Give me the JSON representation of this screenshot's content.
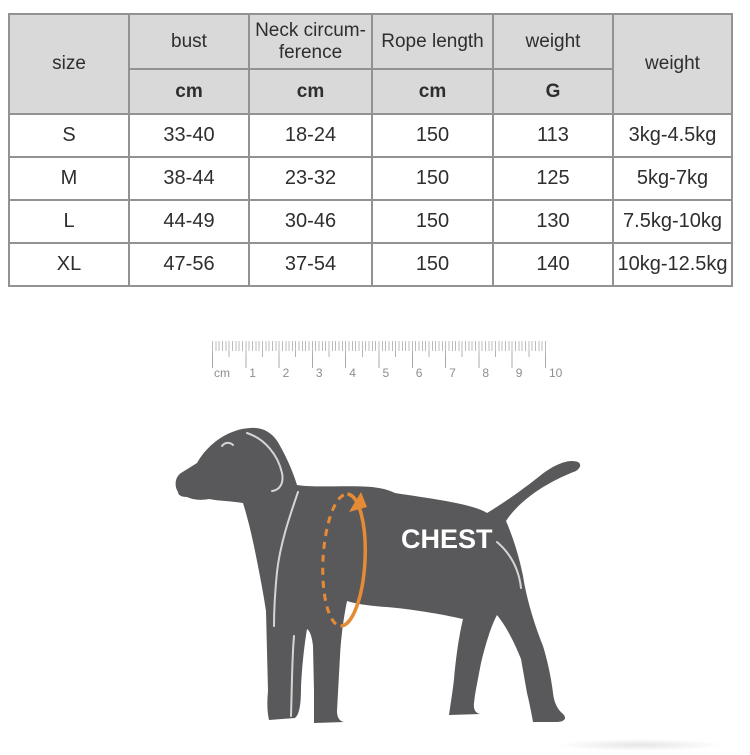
{
  "table": {
    "col_size": "size",
    "col_bust": "bust",
    "col_neck": "Neck circum-\nference",
    "col_rope": "Rope length",
    "col_weight_g": "weight",
    "col_weight_range": "weight",
    "unit_bust": "cm",
    "unit_neck": "cm",
    "unit_rope": "cm",
    "unit_weight": "G",
    "rows": [
      {
        "size": "S",
        "bust": "33-40",
        "neck": "18-24",
        "rope": "150",
        "weight_g": "113",
        "weight_range": "3kg-4.5kg"
      },
      {
        "size": "M",
        "bust": "38-44",
        "neck": "23-32",
        "rope": "150",
        "weight_g": "125",
        "weight_range": "5kg-7kg"
      },
      {
        "size": "L",
        "bust": "44-49",
        "neck": "30-46",
        "rope": "150",
        "weight_g": "130",
        "weight_range": "7.5kg-10kg"
      },
      {
        "size": "XL",
        "bust": "47-56",
        "neck": "37-54",
        "rope": "150",
        "weight_g": "140",
        "weight_range": "10kg-12.5kg"
      }
    ]
  },
  "ruler": {
    "labels": [
      "cm",
      "1",
      "2",
      "3",
      "4",
      "5",
      "6",
      "7",
      "8",
      "9",
      "10"
    ]
  },
  "diagram": {
    "chest_label": "CHEST"
  },
  "colors": {
    "header_bg": "#d9d9d9",
    "table_border": "#929292",
    "dog_gray": "#59595b",
    "accent_orange": "#e58b35",
    "ruler_gray": "#a8a8a8"
  }
}
